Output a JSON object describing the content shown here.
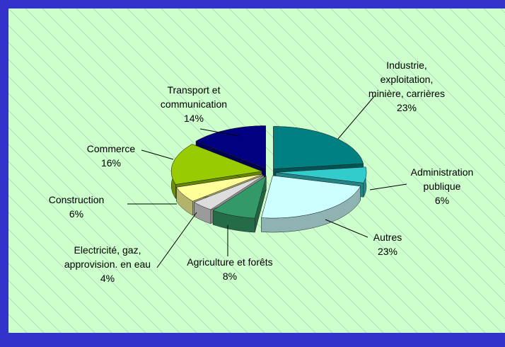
{
  "chart_data": {
    "type": "pie",
    "categories": [
      "Industrie, exploitation, minière, carrières",
      "Administration publique",
      "Autres",
      "Agriculture et forêts",
      "Electricité, gaz, approvision. en eau",
      "Construction",
      "Commerce",
      "Transport et communication"
    ],
    "values": [
      23,
      6,
      23,
      8,
      4,
      6,
      16,
      14
    ],
    "value_labels": [
      "23%",
      "6%",
      "23%",
      "8%",
      "4%",
      "6%",
      "16%",
      "14%"
    ],
    "colors": [
      "#008080",
      "#33cccc",
      "#ccffff",
      "#339966",
      "#dddddd",
      "#ffff99",
      "#99cc00",
      "#000080"
    ]
  }
}
